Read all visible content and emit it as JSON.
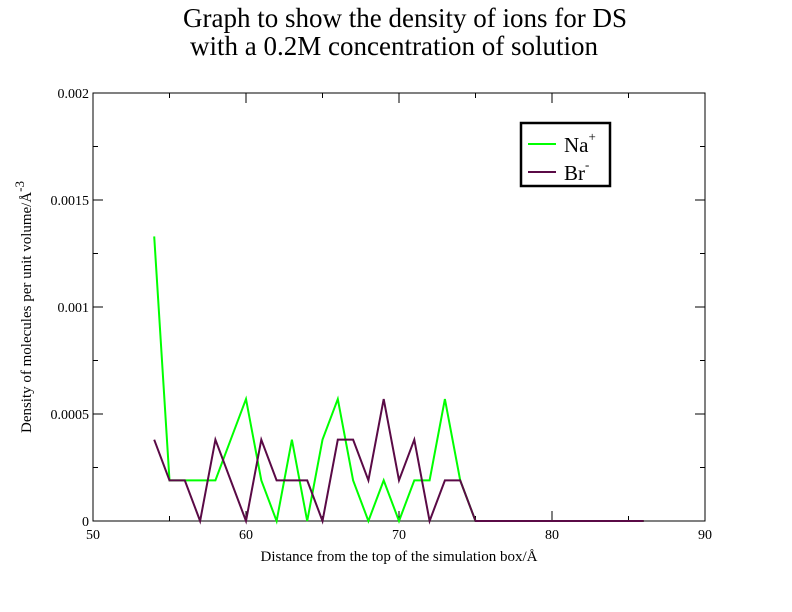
{
  "chart_data": {
    "type": "line",
    "title": [
      "Graph to show the density of ions for DS",
      "with a 0.2M concentration of solution"
    ],
    "xlabel": "Distance from the top of the simulation box/Å",
    "ylabel": "Density of molecules per unit volume/Å",
    "ylabel_sup": "-3",
    "xlim": [
      50,
      90
    ],
    "ylim": [
      0,
      0.002
    ],
    "xticks": [
      "50",
      "60",
      "70",
      "80",
      "90"
    ],
    "yticks": [
      "0",
      "0.0005",
      "0.001",
      "0.0015",
      "0.002"
    ],
    "grid": false,
    "legend_position": "top-right",
    "series": [
      {
        "name": "Na",
        "name_sup": "+",
        "color": "#00ff00",
        "x": [
          54,
          55,
          56,
          57,
          58,
          59,
          60,
          61,
          62,
          63,
          64,
          65,
          66,
          67,
          68,
          69,
          70,
          71,
          72,
          73,
          74,
          75,
          76,
          77,
          78,
          79,
          80,
          81,
          82,
          83,
          84,
          85,
          86
        ],
        "y": [
          0.00133,
          0.00019,
          0.00019,
          0.00019,
          0.00019,
          0.00038,
          0.00057,
          0.00019,
          0.0,
          0.00038,
          0.0,
          0.00038,
          0.00057,
          0.00019,
          0.0,
          0.00019,
          0.0,
          0.00019,
          0.00019,
          0.00057,
          0.00019,
          0.0,
          0.0,
          0.0,
          0.0,
          0.0,
          0.0,
          0.0,
          0.0,
          0.0,
          0.0,
          0.0,
          0.0
        ]
      },
      {
        "name": "Br",
        "name_sup": "-",
        "color": "#5a0a46",
        "x": [
          54,
          55,
          56,
          57,
          58,
          59,
          60,
          61,
          62,
          63,
          64,
          65,
          66,
          67,
          68,
          69,
          70,
          71,
          72,
          73,
          74,
          75,
          76,
          77,
          78,
          79,
          80,
          81,
          82,
          83,
          84,
          85,
          86
        ],
        "y": [
          0.00038,
          0.00019,
          0.00019,
          0.0,
          0.00038,
          0.00019,
          0.0,
          0.00038,
          0.00019,
          0.00019,
          0.00019,
          0.0,
          0.00038,
          0.00038,
          0.00019,
          0.00057,
          0.00019,
          0.00038,
          0.0,
          0.00019,
          0.00019,
          0.0,
          0.0,
          0.0,
          0.0,
          0.0,
          0.0,
          0.0,
          0.0,
          0.0,
          0.0,
          0.0,
          0.0
        ]
      }
    ]
  }
}
